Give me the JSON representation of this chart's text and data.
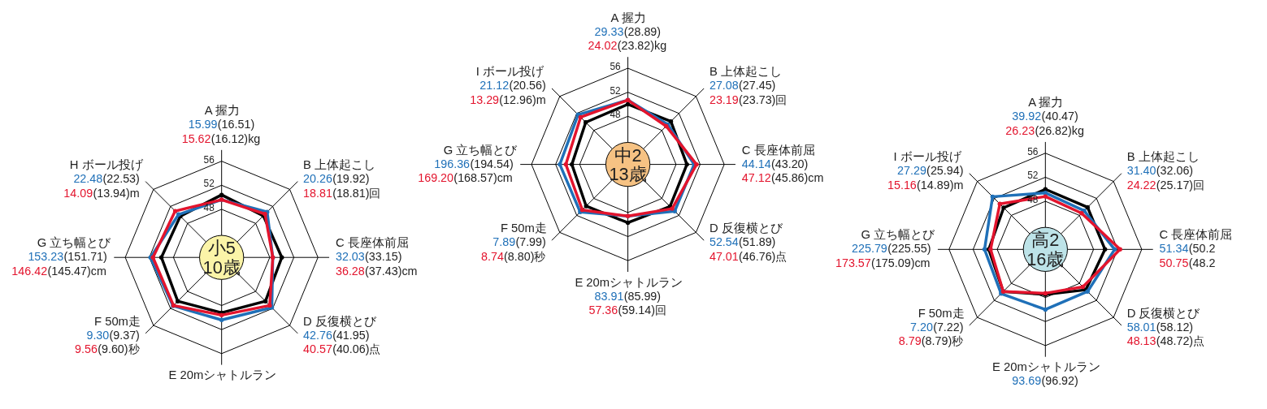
{
  "chart_data": [
    {
      "type": "radar",
      "title": "小5",
      "subtitle": "10歳",
      "categories": [
        "A 握力",
        "B 上体起こし",
        "C 長座体前屈",
        "D 反復横とび",
        "E 20mシャトルラン",
        "F 50m走",
        "G 立ち幅とび",
        "H ボール投げ"
      ],
      "ylim": [
        40,
        56
      ],
      "yticks": [
        48,
        52,
        56
      ],
      "grid": true,
      "marker": "circle",
      "series": [
        {
          "color": "#000000",
          "values": [
            50.4,
            49.8,
            50.0,
            50.3,
            49.2,
            50.3,
            50.0,
            49.7
          ]
        },
        {
          "color": "#1f70b8",
          "values": [
            49.6,
            50.7,
            48.5,
            51.8,
            50.4,
            51.4,
            51.8,
            50.1
          ]
        },
        {
          "color": "#e3142d",
          "values": [
            49.6,
            50.2,
            48.5,
            51.3,
            49.6,
            51.3,
            51.4,
            50.9
          ]
        }
      ],
      "annotations": [
        {
          "text": "15.99",
          "x": "A 握力"
        },
        {
          "text": "(16.51)",
          "x": "A 握力"
        },
        {
          "text": "15.62",
          "x": "A 握力"
        },
        {
          "text": "(16.12)kg",
          "x": "A 握力"
        },
        {
          "text": "20.26",
          "x": "B 上体起こし"
        },
        {
          "text": "(19.92)",
          "x": "B 上体起こし"
        },
        {
          "text": "18.81",
          "x": "B 上体起こし"
        },
        {
          "text": "(18.81)回",
          "x": "B 上体起こし"
        },
        {
          "text": "32.03",
          "x": "C 長座体前屈"
        },
        {
          "text": "(33.15)",
          "x": "C 長座体前屈"
        },
        {
          "text": "36.28",
          "x": "C 長座体前屈"
        },
        {
          "text": "(37.43)cm",
          "x": "C 長座体前屈"
        },
        {
          "text": "42.76",
          "x": "D 反復横とび"
        },
        {
          "text": "(41.95)",
          "x": "D 反復横とび"
        },
        {
          "text": "40.57",
          "x": "D 反復横とび"
        },
        {
          "text": "(40.06)点",
          "x": "D 反復横とび"
        },
        {
          "text": "9.30",
          "x": "F 50m走"
        },
        {
          "text": "(9.37)",
          "x": "F 50m走"
        },
        {
          "text": "9.56",
          "x": "F 50m走"
        },
        {
          "text": "(9.60)秒",
          "x": "F 50m走"
        },
        {
          "text": "153.23",
          "x": "G 立ち幅とび"
        },
        {
          "text": "(151.71)",
          "x": "G 立ち幅とび"
        },
        {
          "text": "146.42",
          "x": "G 立ち幅とび"
        },
        {
          "text": "(145.47)cm",
          "x": "G 立ち幅とび"
        },
        {
          "text": "22.48",
          "x": "H ボール投げ"
        },
        {
          "text": "(22.53)",
          "x": "H ボール投げ"
        },
        {
          "text": "14.09",
          "x": "H ボール投げ"
        },
        {
          "text": "(13.94)m",
          "x": "H ボール投げ"
        }
      ]
    },
    {
      "type": "radar",
      "title": "中2",
      "subtitle": "13歳",
      "categories": [
        "A 握力",
        "B 上体起こし",
        "C 長座体前屈",
        "D 反復横とび",
        "E 20mシャトルラン",
        "F 50m走",
        "G 立ち幅とび",
        "I ボール投げ"
      ],
      "ylim": [
        40,
        56
      ],
      "yticks": [
        48,
        52,
        56
      ],
      "grid": true,
      "marker": "circle",
      "series": [
        {
          "color": "#000000",
          "values": [
            50.0,
            50.1,
            49.8,
            49.9,
            49.7,
            49.8,
            49.3,
            49.9
          ]
        },
        {
          "color": "#1f70b8",
          "values": [
            50.7,
            49.4,
            51.0,
            51.0,
            48.6,
            51.2,
            51.3,
            51.7
          ]
        },
        {
          "color": "#e3142d",
          "values": [
            50.7,
            49.0,
            51.4,
            50.4,
            48.6,
            50.7,
            50.3,
            51.1
          ]
        }
      ],
      "annotations": [
        {
          "text": "29.33",
          "x": "A 握力"
        },
        {
          "text": "(28.89)",
          "x": "A 握力"
        },
        {
          "text": "24.02",
          "x": "A 握力"
        },
        {
          "text": "(23.82)kg",
          "x": "A 握力"
        },
        {
          "text": "27.08",
          "x": "B 上体起こし"
        },
        {
          "text": "(27.45)",
          "x": "B 上体起こし"
        },
        {
          "text": "23.19",
          "x": "B 上体起こし"
        },
        {
          "text": "(23.73)回",
          "x": "B 上体起こし"
        },
        {
          "text": "44.14",
          "x": "C 長座体前屈"
        },
        {
          "text": "(43.20)",
          "x": "C 長座体前屈"
        },
        {
          "text": "47.12",
          "x": "C 長座体前屈"
        },
        {
          "text": "(45.86)cm",
          "x": "C 長座体前屈"
        },
        {
          "text": "52.54",
          "x": "D 反復横とび"
        },
        {
          "text": "(51.89)",
          "x": "D 反復横とび"
        },
        {
          "text": "47.01",
          "x": "D 反復横とび"
        },
        {
          "text": "(46.76)点",
          "x": "D 反復横とび"
        },
        {
          "text": "83.91",
          "x": "E 20mシャトルラン"
        },
        {
          "text": "(85.99)",
          "x": "E 20mシャトルラン"
        },
        {
          "text": "57.36",
          "x": "E 20mシャトルラン"
        },
        {
          "text": "(59.14)回",
          "x": "E 20mシャトルラン"
        },
        {
          "text": "7.89",
          "x": "F 50m走"
        },
        {
          "text": "(7.99)",
          "x": "F 50m走"
        },
        {
          "text": "8.74",
          "x": "F 50m走"
        },
        {
          "text": "(8.80)秒",
          "x": "F 50m走"
        },
        {
          "text": "196.36",
          "x": "G 立ち幅とび"
        },
        {
          "text": "(194.54)",
          "x": "G 立ち幅とび"
        },
        {
          "text": "169.20",
          "x": "G 立ち幅とび"
        },
        {
          "text": "(168.57)cm",
          "x": "G 立ち幅とび"
        },
        {
          "text": "21.12",
          "x": "I ボール投げ"
        },
        {
          "text": "(20.56)",
          "x": "I ボール投げ"
        },
        {
          "text": "13.29",
          "x": "I ボール投げ"
        },
        {
          "text": "(12.96)m",
          "x": "I ボール投げ"
        }
      ]
    },
    {
      "type": "radar",
      "title": "高2",
      "subtitle": "16歳",
      "categories": [
        "A 握力",
        "B 上体起こし",
        "C 長座体前屈",
        "D 反復横とび",
        "E 20mシャトルラン",
        "F 50m走",
        "G 立ち幅とび",
        "I ボール投げ"
      ],
      "ylim": [
        40,
        56
      ],
      "yticks": [
        48,
        52,
        56
      ],
      "grid": true,
      "marker": "circle",
      "series": [
        {
          "color": "#000000",
          "values": [
            50.0,
            49.9,
            49.9,
            49.5,
            47.5,
            49.9,
            49.4,
            49.8
          ]
        },
        {
          "color": "#1f70b8",
          "values": [
            49.4,
            49.1,
            51.5,
            49.9,
            50.0,
            50.4,
            50.1,
            52.4
          ]
        },
        {
          "color": "#e3142d",
          "values": [
            48.8,
            48.5,
            52.4,
            48.8,
            47.3,
            49.9,
            49.1,
            50.7
          ]
        }
      ],
      "annotations": [
        {
          "text": "39.92",
          "x": "A 握力"
        },
        {
          "text": "(40.47)",
          "x": "A 握力"
        },
        {
          "text": "26.23",
          "x": "A 握力"
        },
        {
          "text": "(26.82)kg",
          "x": "A 握力"
        },
        {
          "text": "31.40",
          "x": "B 上体起こし"
        },
        {
          "text": "(32.06)",
          "x": "B 上体起こし"
        },
        {
          "text": "24.22",
          "x": "B 上体起こし"
        },
        {
          "text": "(25.17)回",
          "x": "B 上体起こし"
        },
        {
          "text": "51.34",
          "x": "C 長座体前屈"
        },
        {
          "text": "(50.2",
          "x": "C 長座体前屈"
        },
        {
          "text": "50.75",
          "x": "C 長座体前屈"
        },
        {
          "text": "(48.2",
          "x": "C 長座体前屈"
        },
        {
          "text": "58.01",
          "x": "D 反復横とび"
        },
        {
          "text": "(58.12)",
          "x": "D 反復横とび"
        },
        {
          "text": "48.13",
          "x": "D 反復横とび"
        },
        {
          "text": "(48.72)点",
          "x": "D 反復横とび"
        },
        {
          "text": "93.69",
          "x": "E 20mシャトルラン"
        },
        {
          "text": "(96.92)",
          "x": "E 20mシャトルラン"
        },
        {
          "text": "7.20",
          "x": "F 50m走"
        },
        {
          "text": "(7.22)",
          "x": "F 50m走"
        },
        {
          "text": "8.79",
          "x": "F 50m走"
        },
        {
          "text": "(8.79)秒",
          "x": "F 50m走"
        },
        {
          "text": "225.79",
          "x": "G 立ち幅とび"
        },
        {
          "text": "(225.55)",
          "x": "G 立ち幅とび"
        },
        {
          "text": "173.57",
          "x": "G 立ち幅とび"
        },
        {
          "text": "(175.09)cm",
          "x": "G 立ち幅とび"
        },
        {
          "text": "27.29",
          "x": "I ボール投げ"
        },
        {
          "text": "(25.94)",
          "x": "I ボール投げ"
        },
        {
          "text": "15.16",
          "x": "I ボール投げ"
        },
        {
          "text": "(14.89)m",
          "x": "I ボール投げ"
        }
      ]
    }
  ]
}
